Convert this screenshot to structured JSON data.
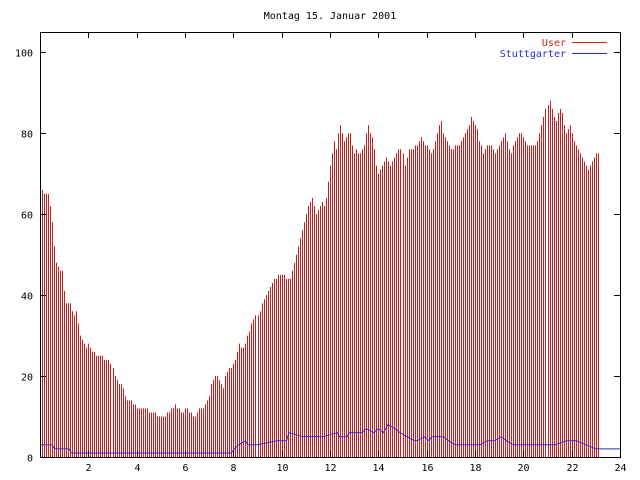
{
  "chart_data": {
    "type": "bar",
    "title": "Montag 15. Januar 2001",
    "xlabel": "",
    "ylabel": "",
    "xlim": [
      0,
      24
    ],
    "ylim": [
      0,
      105
    ],
    "x_ticks": [
      2,
      4,
      6,
      8,
      10,
      12,
      14,
      16,
      18,
      20,
      22,
      24
    ],
    "y_ticks": [
      0,
      20,
      40,
      60,
      80,
      100
    ],
    "grid": false,
    "legend_position": "top-right",
    "interval_minutes": 5,
    "series": [
      {
        "name": "User",
        "style": "impulses",
        "color": "#d11a1a",
        "values": [
          64,
          66,
          65,
          65,
          65,
          62,
          58,
          52,
          48,
          47,
          46,
          46,
          41,
          38,
          38,
          38,
          36,
          35,
          36,
          33,
          30,
          29,
          28,
          27,
          28,
          27,
          26,
          26,
          25,
          25,
          25,
          25,
          24,
          24,
          24,
          23,
          22,
          20,
          19,
          18,
          18,
          17,
          15,
          14,
          14,
          14,
          13,
          13,
          12,
          12,
          12,
          12,
          12,
          12,
          11,
          11,
          11,
          11,
          10,
          10,
          10,
          10,
          10,
          11,
          11,
          12,
          12,
          13,
          12,
          12,
          11,
          11,
          12,
          12,
          11,
          11,
          10,
          10,
          11,
          12,
          12,
          12,
          13,
          14,
          15,
          18,
          19,
          20,
          20,
          19,
          18,
          17,
          20,
          21,
          22,
          22,
          23,
          24,
          26,
          28,
          27,
          27,
          28,
          30,
          31,
          33,
          34,
          35,
          35,
          36,
          38,
          39,
          40,
          41,
          42,
          43,
          44,
          44,
          45,
          45,
          45,
          45,
          44,
          44,
          44,
          46,
          48,
          50,
          52,
          54,
          56,
          58,
          60,
          62,
          63,
          64,
          62,
          60,
          61,
          62,
          63,
          62,
          64,
          68,
          72,
          75,
          78,
          76,
          80,
          82,
          80,
          78,
          79,
          80,
          80,
          77,
          75,
          76,
          75,
          75,
          76,
          77,
          80,
          82,
          80,
          79,
          76,
          72,
          70,
          71,
          72,
          73,
          74,
          73,
          72,
          73,
          74,
          75,
          76,
          76,
          75,
          72,
          74,
          76,
          76,
          76,
          77,
          77,
          78,
          79,
          78,
          77,
          77,
          76,
          75,
          76,
          78,
          80,
          82,
          83,
          80,
          79,
          78,
          77,
          76,
          76,
          77,
          77,
          77,
          78,
          79,
          80,
          81,
          82,
          84,
          83,
          82,
          81,
          78,
          77,
          75,
          76,
          77,
          77,
          77,
          76,
          75,
          76,
          77,
          78,
          79,
          80,
          78,
          76,
          75,
          77,
          78,
          79,
          80,
          80,
          79,
          78,
          77,
          77,
          77,
          77,
          77,
          78,
          80,
          82,
          84,
          86,
          87,
          88,
          86,
          84,
          83,
          85,
          86,
          85,
          82,
          80,
          81,
          82,
          80,
          78,
          77,
          76,
          75,
          74,
          73,
          72,
          71,
          72,
          73,
          74,
          75,
          75
        ]
      },
      {
        "name": "Stuttgarter",
        "style": "lines",
        "color": "#1f2fd0",
        "x": [
          0,
          0.5,
          0.6,
          1.2,
          1.3,
          3,
          4,
          5,
          6,
          7,
          7.9,
          8.2,
          8.5,
          8.6,
          9,
          9.8,
          9.9,
          10.2,
          10.3,
          10.9,
          11,
          11.6,
          11.7,
          12.3,
          12.4,
          12.7,
          12.8,
          13.3,
          13.5,
          13.8,
          14,
          14.2,
          14.4,
          14.7,
          14.9,
          15.2,
          15.5,
          15.6,
          15.9,
          16.1,
          16.2,
          16.7,
          16.9,
          17.2,
          17.7,
          18.2,
          18.5,
          18.8,
          19.1,
          19.3,
          19.6,
          19.8,
          20.1,
          20.7,
          21,
          21.3,
          21.8,
          22,
          22.2,
          23,
          24
        ],
        "values": [
          3,
          3,
          2,
          2,
          1,
          1,
          1,
          1,
          1,
          1,
          1,
          3,
          4,
          3,
          3,
          4,
          4,
          4,
          6,
          5,
          5,
          5,
          5,
          6,
          5,
          5,
          6,
          6,
          7,
          6,
          7,
          6,
          8,
          7,
          6,
          5,
          4,
          4,
          5,
          4,
          5,
          5,
          4,
          3,
          3,
          3,
          4,
          4,
          5,
          4,
          3,
          3,
          3,
          3,
          3,
          3,
          4,
          4,
          4,
          2,
          2
        ]
      }
    ]
  }
}
